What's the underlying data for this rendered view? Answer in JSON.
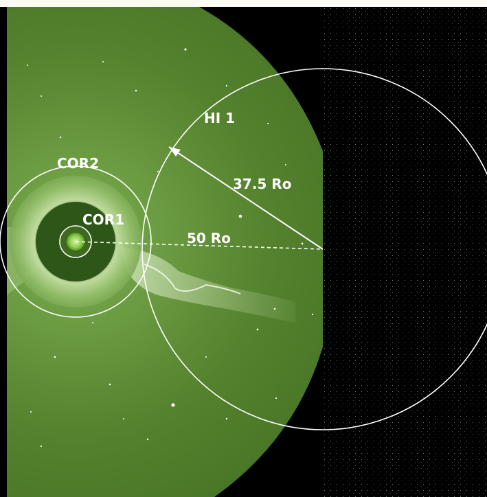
{
  "labels": {
    "cor2": "COR2",
    "cor1": "COR1",
    "hi1": "HI 1",
    "radius_37": "37.5 Ro",
    "distance_50": "50 Ro"
  },
  "colors": {
    "background_frame": "#fbfaf3",
    "space": "#000000",
    "sky_green": "#5a8a2e",
    "occulter_dark": "#244414",
    "sun_green": "#7cc23a",
    "overlay_lines": "#ffffff"
  }
}
